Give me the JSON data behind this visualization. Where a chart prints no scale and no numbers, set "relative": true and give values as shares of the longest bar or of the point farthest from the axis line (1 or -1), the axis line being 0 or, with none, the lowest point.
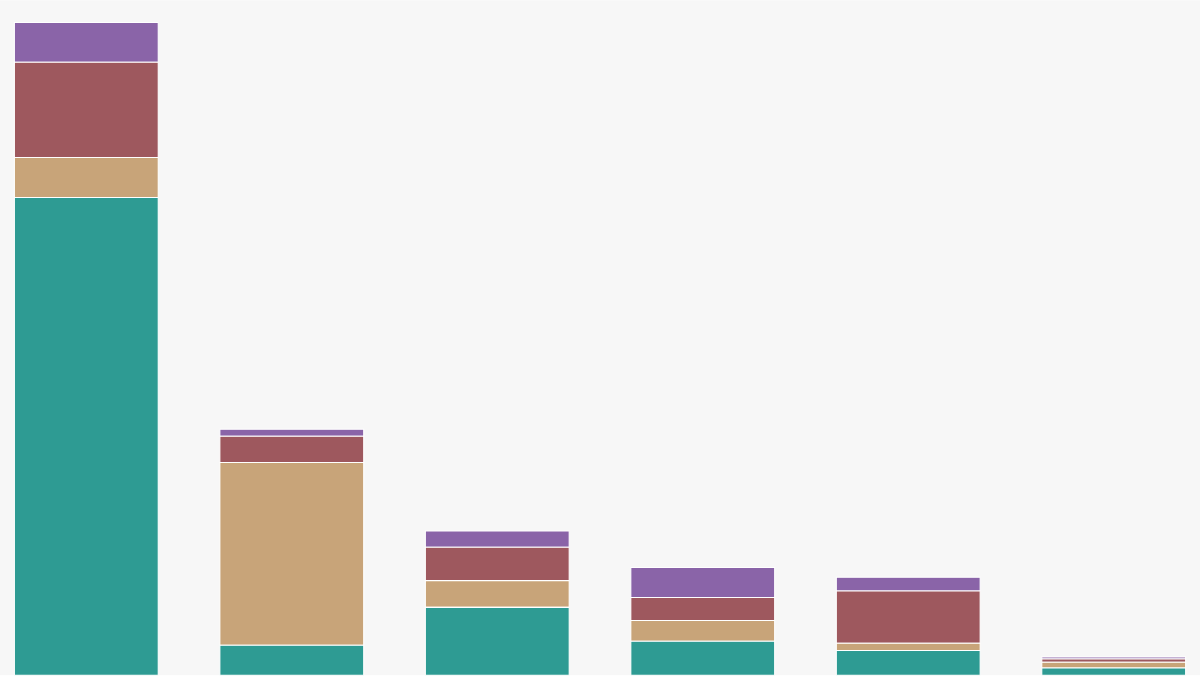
{
  "chart_data": {
    "type": "bar",
    "stacked": true,
    "relative": true,
    "categories": [
      null,
      null,
      null,
      null,
      null,
      null
    ],
    "series": [
      {
        "color": "#2e9b93",
        "values": [
          0.732,
          0.046,
          0.104,
          0.052,
          0.038,
          0.011
        ]
      },
      {
        "color": "#c8a479",
        "values": [
          0.061,
          0.28,
          0.041,
          0.032,
          0.011,
          0.009
        ]
      },
      {
        "color": "#9e585e",
        "values": [
          0.146,
          0.04,
          0.051,
          0.035,
          0.08,
          0.005
        ]
      },
      {
        "color": "#8a64a8",
        "values": [
          0.061,
          0.011,
          0.025,
          0.046,
          0.021,
          0.003
        ]
      }
    ]
  }
}
